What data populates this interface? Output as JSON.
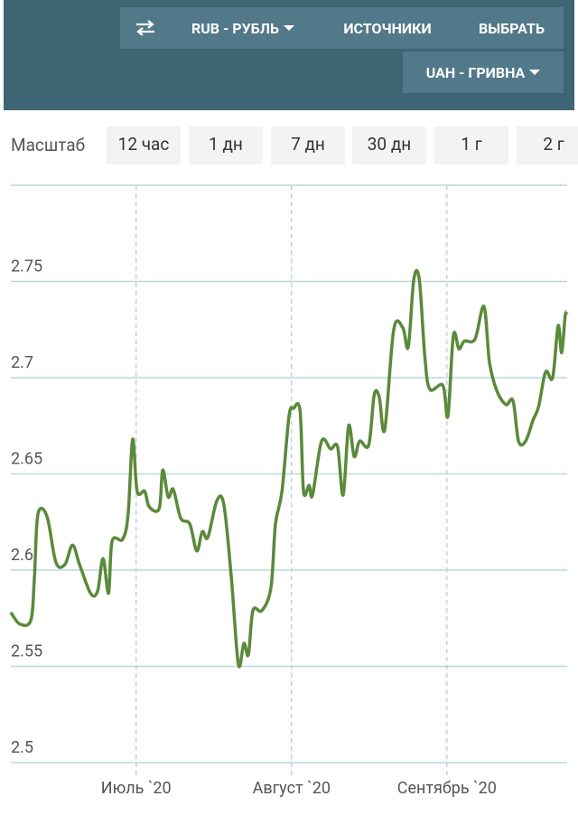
{
  "header": {
    "currency_from": "RUB - РУБЛЬ",
    "sources": "ИСТОЧНИКИ",
    "choose": "ВЫБРАТЬ",
    "currency_to": "UAH - ГРИВНА"
  },
  "scale": {
    "label": "Масштаб",
    "options": [
      "12 час",
      "1 дн",
      "7 дн",
      "30 дн",
      "1 г",
      "2 г"
    ]
  },
  "chart_data": {
    "type": "line",
    "color": "#5a8a3a",
    "grid": true,
    "x": [
      0,
      1.8,
      4,
      4.7,
      5.4,
      7.2,
      9,
      10.8,
      12.3,
      13.7,
      15.9,
      17.3,
      18.4,
      19.5,
      20.2,
      22.3,
      23.4,
      24.3,
      25.2,
      26.7,
      27.6,
      29.6,
      30.3,
      31.4,
      32.4,
      33.9,
      35.7,
      37.1,
      38.2,
      39.3,
      41.1,
      42.5,
      44,
      45.4,
      46.5,
      47.4,
      48.3,
      50.1,
      51.9,
      52.8,
      54.1,
      55.5,
      56.4,
      57.7,
      58.4,
      59.5,
      60.2,
      62,
      63.8,
      65.2,
      66.3,
      67.4,
      68.5,
      69.6,
      71.4,
      72.5,
      73.5,
      74.6,
      76.4,
      78.2,
      79.3,
      80.4,
      81.5,
      82.6,
      83.6,
      86.2,
      87.2,
      88.3,
      89.4,
      90.5,
      92.6,
      94.4,
      95.5,
      97,
      98.8,
      100.2,
      101.3,
      102.7,
      104.2,
      105.3,
      106.7,
      108.1,
      109.2,
      109.9,
      110.6,
      111
    ],
    "series": [
      {
        "name": "UAH",
        "color": "#5a8a3a",
        "values": [
          2.578,
          2.572,
          2.574,
          2.596,
          2.629,
          2.628,
          2.604,
          2.603,
          2.613,
          2.603,
          2.588,
          2.589,
          2.606,
          2.588,
          2.615,
          2.616,
          2.629,
          2.668,
          2.641,
          2.641,
          2.633,
          2.632,
          2.652,
          2.638,
          2.642,
          2.627,
          2.624,
          2.61,
          2.62,
          2.617,
          2.636,
          2.634,
          2.596,
          2.551,
          2.562,
          2.556,
          2.579,
          2.579,
          2.591,
          2.624,
          2.641,
          2.68,
          2.684,
          2.683,
          2.641,
          2.644,
          2.639,
          2.667,
          2.663,
          2.664,
          2.639,
          2.675,
          2.659,
          2.667,
          2.665,
          2.691,
          2.69,
          2.673,
          2.725,
          2.726,
          2.716,
          2.751,
          2.751,
          2.711,
          2.694,
          2.696,
          2.68,
          2.722,
          2.715,
          2.719,
          2.72,
          2.737,
          2.708,
          2.693,
          2.686,
          2.688,
          2.667,
          2.667,
          2.678,
          2.685,
          2.703,
          2.7,
          2.727,
          2.713,
          2.732,
          2.734
        ]
      }
    ],
    "xlim": [
      0,
      111
    ],
    "xticks": [
      {
        "value": 25,
        "label": "Июль `20"
      },
      {
        "value": 56,
        "label": "Август `20"
      },
      {
        "value": 87,
        "label": "Сентябрь `20"
      }
    ],
    "ylim": [
      2.5,
      2.8
    ],
    "yticks": [
      2.5,
      2.55,
      2.6,
      2.65,
      2.7,
      2.75
    ]
  }
}
